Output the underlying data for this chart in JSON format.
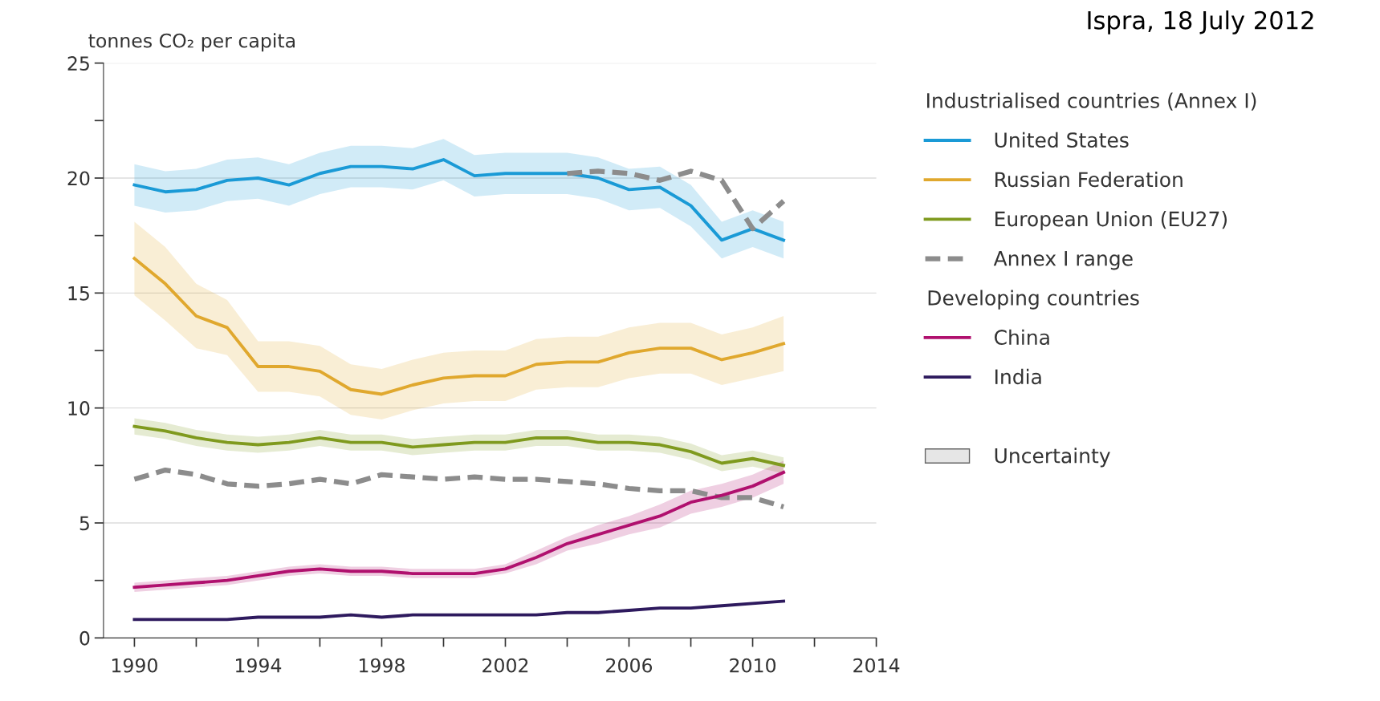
{
  "chart_data": {
    "type": "line",
    "ylabel": "tonnes CO₂ per capita",
    "legend_title": "Industrialised countries (Annex I)",
    "annotations": [
      "Ispra, 18 July 2012",
      "Developing countries",
      "Uncertainty"
    ],
    "x": [
      1990,
      1991,
      1992,
      1993,
      1994,
      1995,
      1996,
      1997,
      1998,
      1999,
      2000,
      2001,
      2002,
      2003,
      2004,
      2005,
      2006,
      2007,
      2008,
      2009,
      2010,
      2011
    ],
    "series": [
      {
        "name": "United States",
        "color": "#1a9ad6",
        "values": [
          19.7,
          19.4,
          19.5,
          19.9,
          20.0,
          19.7,
          20.2,
          20.5,
          20.5,
          20.4,
          20.8,
          20.1,
          20.2,
          20.2,
          20.2,
          20.0,
          19.5,
          19.6,
          18.8,
          17.3,
          17.8,
          17.3
        ],
        "lower": [
          18.8,
          18.5,
          18.6,
          19.0,
          19.1,
          18.8,
          19.3,
          19.6,
          19.6,
          19.5,
          19.9,
          19.2,
          19.3,
          19.3,
          19.3,
          19.1,
          18.6,
          18.7,
          17.9,
          16.5,
          17.0,
          16.5
        ],
        "upper": [
          20.6,
          20.3,
          20.4,
          20.8,
          20.9,
          20.6,
          21.1,
          21.4,
          21.4,
          21.3,
          21.7,
          21.0,
          21.1,
          21.1,
          21.1,
          20.9,
          20.4,
          20.5,
          19.7,
          18.1,
          18.6,
          18.1
        ]
      },
      {
        "name": "Russian Federation",
        "color": "#e0a82e",
        "values": [
          16.5,
          15.4,
          14.0,
          13.5,
          11.8,
          11.8,
          11.6,
          10.8,
          10.6,
          11.0,
          11.3,
          11.4,
          11.4,
          11.9,
          12.0,
          12.0,
          12.4,
          12.6,
          12.6,
          12.1,
          12.4,
          12.8
        ],
        "lower": [
          14.9,
          13.8,
          12.6,
          12.3,
          10.7,
          10.7,
          10.5,
          9.7,
          9.5,
          9.9,
          10.2,
          10.3,
          10.3,
          10.8,
          10.9,
          10.9,
          11.3,
          11.5,
          11.5,
          11.0,
          11.3,
          11.6
        ],
        "upper": [
          18.1,
          17.0,
          15.4,
          14.7,
          12.9,
          12.9,
          12.7,
          11.9,
          11.7,
          12.1,
          12.4,
          12.5,
          12.5,
          13.0,
          13.1,
          13.1,
          13.5,
          13.7,
          13.7,
          13.2,
          13.5,
          14.0
        ]
      },
      {
        "name": "European Union (EU27)",
        "color": "#7f9a1e",
        "values": [
          9.2,
          9.0,
          8.7,
          8.5,
          8.4,
          8.5,
          8.7,
          8.5,
          8.5,
          8.3,
          8.4,
          8.5,
          8.5,
          8.7,
          8.7,
          8.5,
          8.5,
          8.4,
          8.1,
          7.6,
          7.8,
          7.5
        ],
        "lower": [
          8.85,
          8.65,
          8.35,
          8.15,
          8.05,
          8.15,
          8.35,
          8.15,
          8.15,
          7.95,
          8.05,
          8.15,
          8.15,
          8.35,
          8.35,
          8.15,
          8.15,
          8.05,
          7.75,
          7.25,
          7.45,
          7.15
        ],
        "upper": [
          9.55,
          9.35,
          9.05,
          8.85,
          8.75,
          8.85,
          9.05,
          8.85,
          8.85,
          8.65,
          8.75,
          8.85,
          8.85,
          9.05,
          9.05,
          8.85,
          8.85,
          8.75,
          8.45,
          7.95,
          8.15,
          7.85
        ]
      },
      {
        "name": "Annex I range",
        "color": "#8c8c8c",
        "line_style": "dashed",
        "values": [
          6.9,
          7.3,
          7.1,
          6.7,
          6.6,
          6.7,
          6.9,
          6.7,
          7.1,
          7.0,
          6.9,
          7.0,
          6.9,
          6.9,
          6.8,
          6.7,
          6.5,
          6.4,
          6.4,
          6.1,
          6.1,
          5.7
        ]
      },
      {
        "color": "#8c8c8c",
        "line_style": "dashed",
        "x": [
          2004,
          2005,
          2006,
          2007,
          2008,
          2009,
          2010,
          2011
        ],
        "values": [
          20.2,
          20.3,
          20.2,
          19.9,
          20.3,
          19.9,
          17.8,
          19.0
        ]
      },
      {
        "name": "China",
        "color": "#b0106e",
        "values": [
          2.2,
          2.3,
          2.4,
          2.5,
          2.7,
          2.9,
          3.0,
          2.9,
          2.9,
          2.8,
          2.8,
          2.8,
          3.0,
          3.5,
          4.1,
          4.5,
          4.9,
          5.3,
          5.9,
          6.2,
          6.6,
          7.2
        ],
        "lower": [
          2.0,
          2.1,
          2.2,
          2.3,
          2.5,
          2.7,
          2.8,
          2.7,
          2.7,
          2.6,
          2.6,
          2.6,
          2.8,
          3.2,
          3.8,
          4.1,
          4.5,
          4.8,
          5.4,
          5.7,
          6.1,
          6.7
        ],
        "upper": [
          2.4,
          2.5,
          2.6,
          2.7,
          2.9,
          3.1,
          3.2,
          3.1,
          3.1,
          3.0,
          3.0,
          3.0,
          3.2,
          3.8,
          4.4,
          4.9,
          5.3,
          5.8,
          6.4,
          6.7,
          7.1,
          7.7
        ]
      },
      {
        "name": "India",
        "color": "#2e1a5e",
        "values": [
          0.8,
          0.8,
          0.8,
          0.8,
          0.9,
          0.9,
          0.9,
          1.0,
          0.9,
          1.0,
          1.0,
          1.0,
          1.0,
          1.0,
          1.1,
          1.1,
          1.2,
          1.3,
          1.3,
          1.4,
          1.5,
          1.6
        ]
      }
    ],
    "xlim": [
      1989,
      2014
    ],
    "xticks": [
      1990,
      {
        "value": 1992,
        "label": null
      },
      1994,
      {
        "value": 1996,
        "label": null
      },
      1998,
      {
        "value": 2000,
        "label": null
      },
      2002,
      {
        "value": 2004,
        "label": null
      },
      2006,
      {
        "value": 2008,
        "label": null
      },
      2010,
      {
        "value": 2012,
        "label": null
      },
      2014
    ],
    "ylim": [
      0,
      25
    ],
    "yticks": [
      0,
      {
        "value": 2.5,
        "label": null
      },
      5,
      {
        "value": 7.5,
        "label": null
      },
      10,
      {
        "value": 12.5,
        "label": null
      },
      15,
      {
        "value": 17.5,
        "label": null
      },
      20,
      {
        "value": 22.5,
        "label": null
      },
      25
    ],
    "grid": "y",
    "legend": "right",
    "marker": "none",
    "line_style": "solid"
  }
}
